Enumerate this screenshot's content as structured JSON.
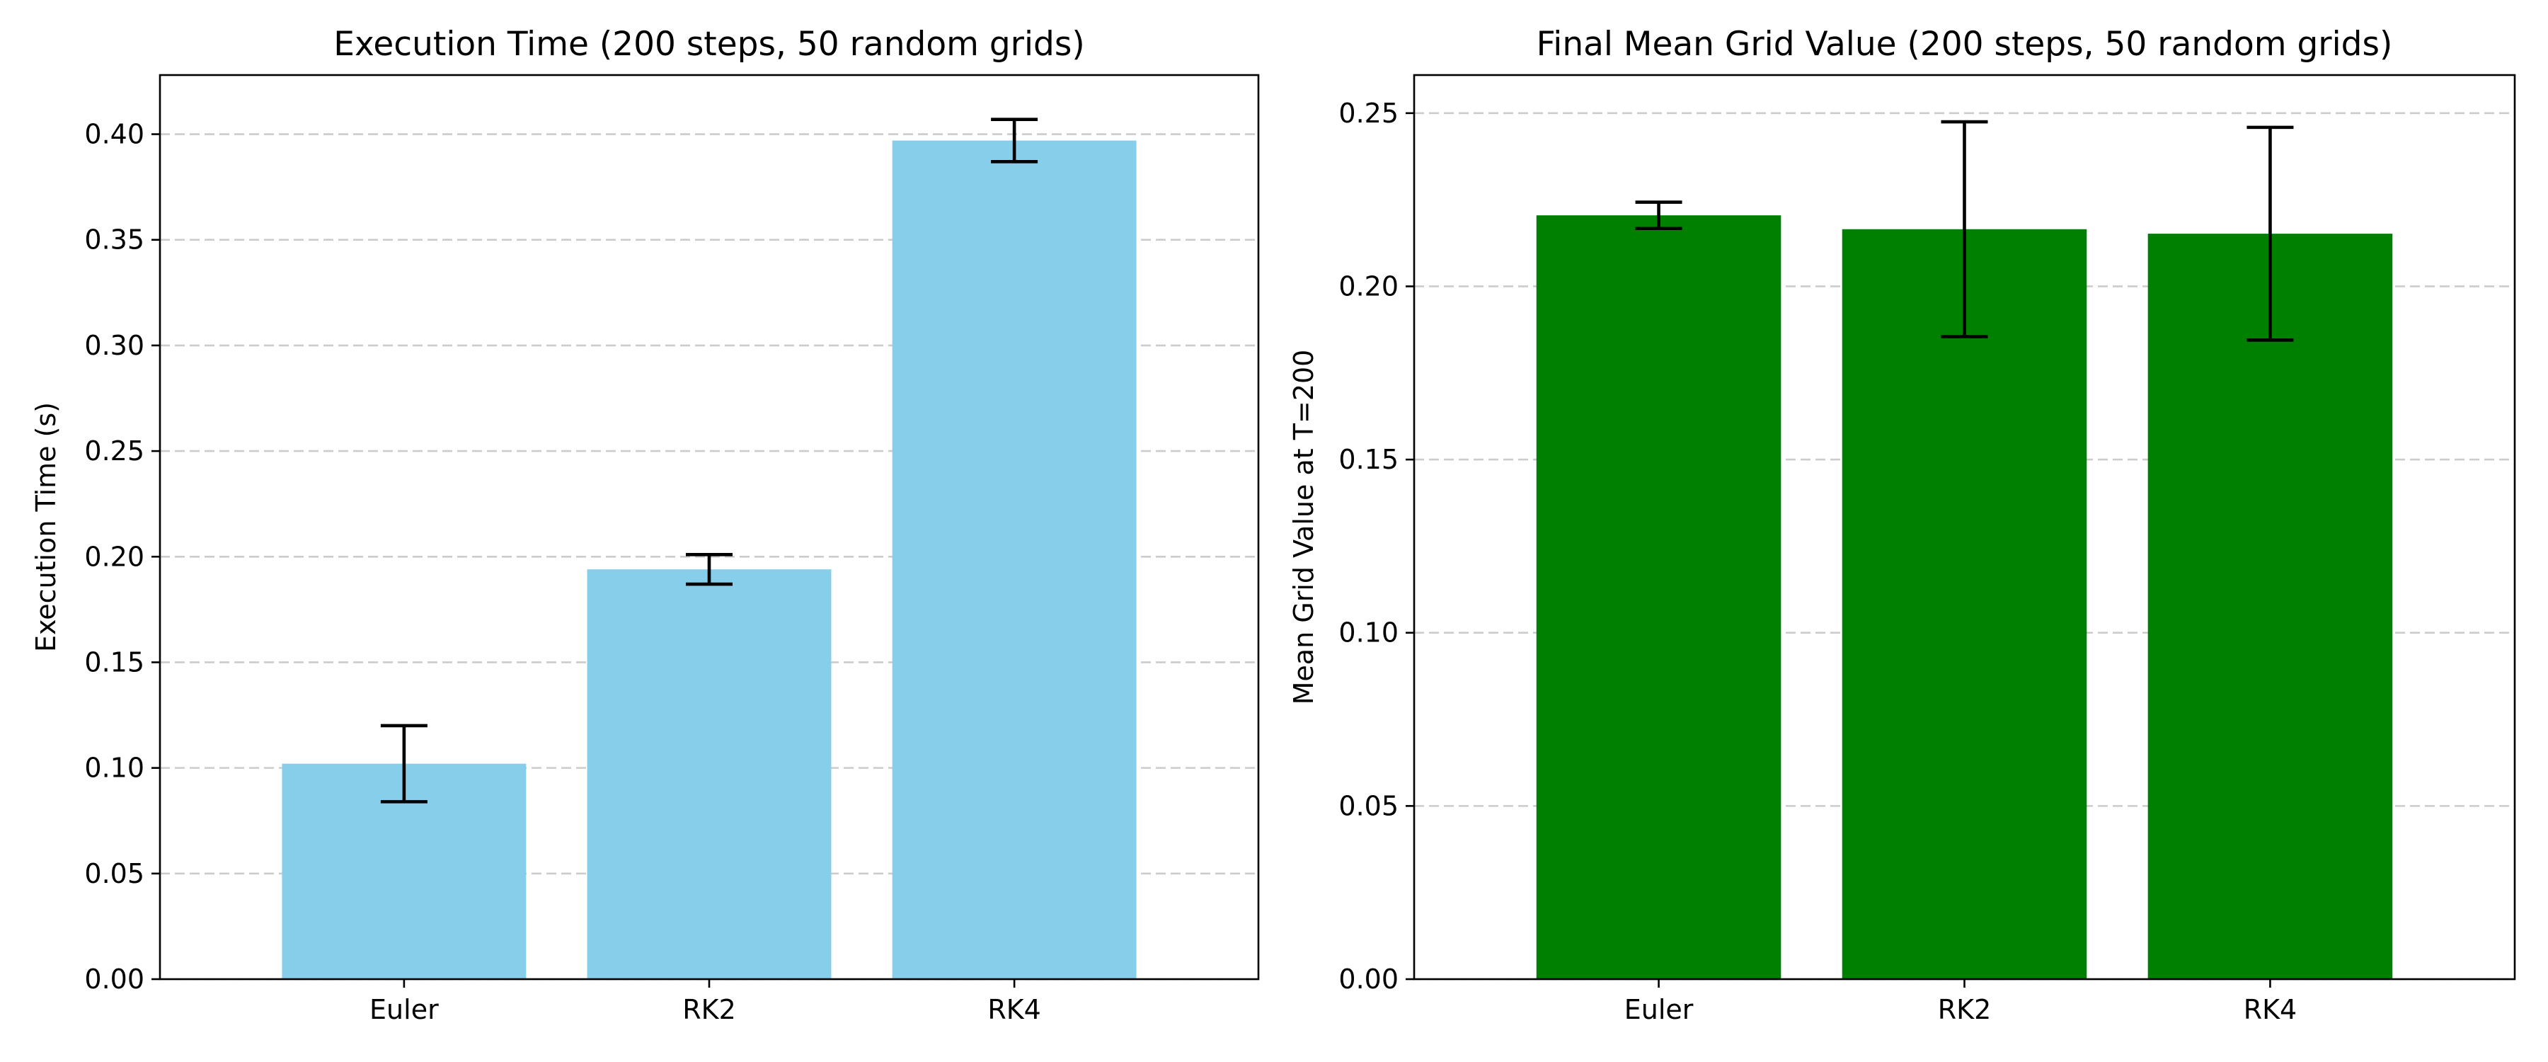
{
  "chart_data": [
    {
      "type": "bar",
      "title": "Execution Time (200 steps, 50 random grids)",
      "xlabel": "",
      "ylabel": "Execution Time (s)",
      "categories": [
        "Euler",
        "RK2",
        "RK4"
      ],
      "values": [
        0.102,
        0.194,
        0.397
      ],
      "errors": [
        0.018,
        0.007,
        0.01
      ],
      "ylim": [
        0,
        0.428
      ],
      "yticks": [
        0.0,
        0.05,
        0.1,
        0.15,
        0.2,
        0.25,
        0.3,
        0.35,
        0.4
      ],
      "ytick_labels": [
        "0.00",
        "0.05",
        "0.10",
        "0.15",
        "0.20",
        "0.25",
        "0.30",
        "0.35",
        "0.40"
      ],
      "bar_color": "#87ceeb",
      "grid": "y, dashed"
    },
    {
      "type": "bar",
      "title": "Final Mean Grid Value (200 steps, 50 random grids)",
      "xlabel": "",
      "ylabel": "Mean Grid Value at T=200",
      "categories": [
        "Euler",
        "RK2",
        "RK4"
      ],
      "values": [
        0.2205,
        0.2165,
        0.2152
      ],
      "errors": [
        0.0038,
        0.031,
        0.0307
      ],
      "ylim": [
        0,
        0.261
      ],
      "yticks": [
        0.0,
        0.05,
        0.1,
        0.15,
        0.2,
        0.25
      ],
      "ytick_labels": [
        "0.00",
        "0.05",
        "0.10",
        "0.15",
        "0.20",
        "0.25"
      ],
      "bar_color": "#008000",
      "grid": "y, dashed"
    }
  ]
}
